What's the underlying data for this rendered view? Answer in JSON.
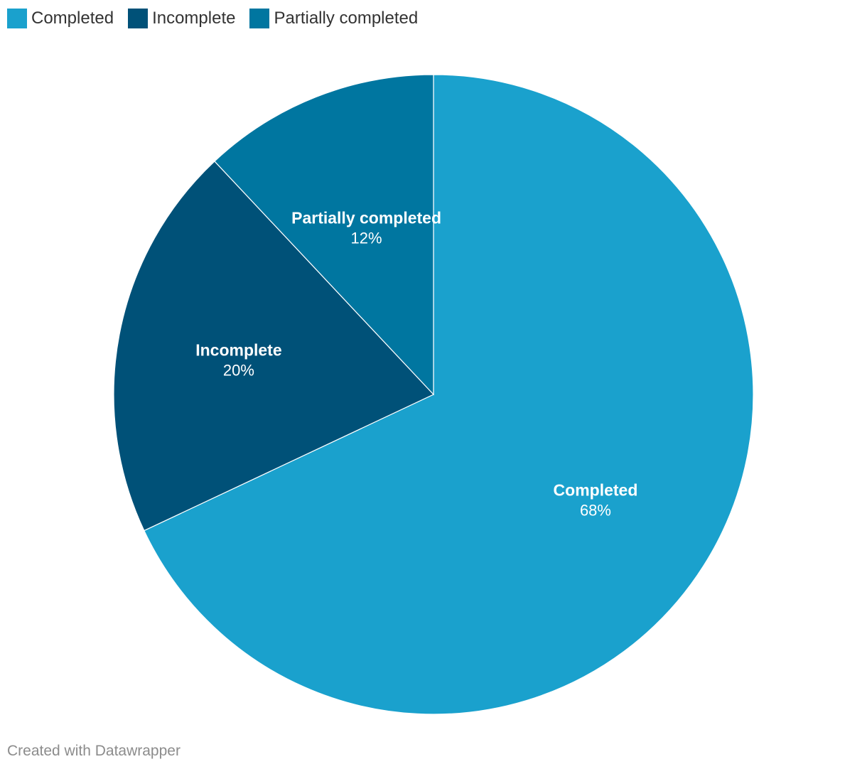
{
  "chart_data": {
    "type": "pie",
    "title": "",
    "categories": [
      "Completed",
      "Incomplete",
      "Partially completed"
    ],
    "values": [
      68,
      20,
      12
    ],
    "value_labels": [
      "68%",
      "20%",
      "12%"
    ],
    "colors": [
      "#1aa1cd",
      "#005178",
      "#0076a0"
    ],
    "legend_placement": "top-left"
  },
  "legend": {
    "items": [
      {
        "label": "Completed",
        "color": "#1aa1cd"
      },
      {
        "label": "Incomplete",
        "color": "#005178"
      },
      {
        "label": "Partially completed",
        "color": "#0076a0"
      }
    ]
  },
  "footer": {
    "credit": "Created with Datawrapper"
  }
}
